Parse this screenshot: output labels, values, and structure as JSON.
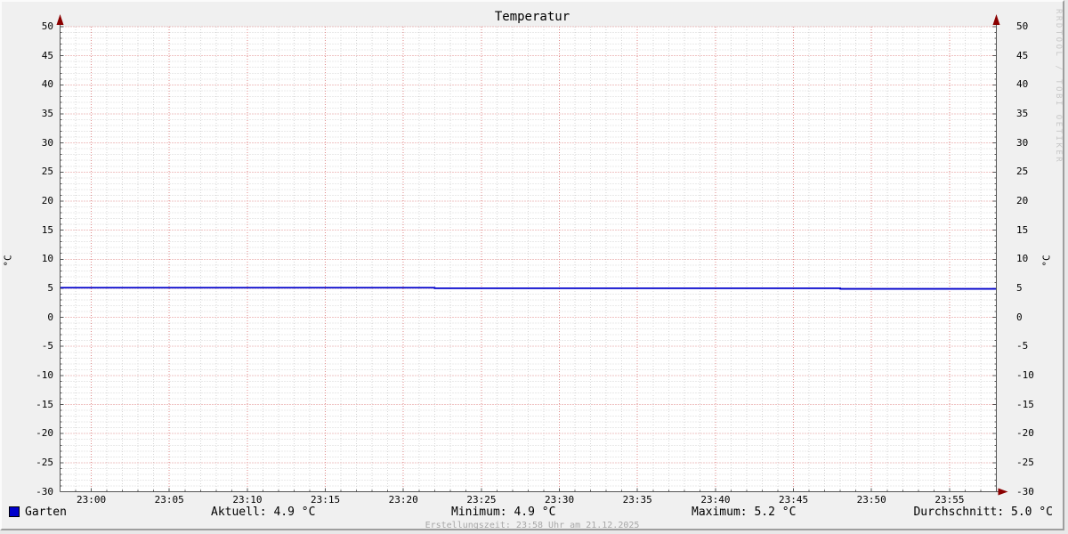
{
  "chart_data": {
    "type": "line",
    "title": "Temperatur",
    "ylabel": "°C",
    "ylabel_right": "°C",
    "ylim": [
      -30,
      50
    ],
    "y_tick_step": 5,
    "y_tick_labels": [
      "50",
      "45",
      "40",
      "35",
      "30",
      "25",
      "20",
      "15",
      "10",
      "5",
      "0",
      "-5",
      "-10",
      "-15",
      "-20",
      "-25",
      "-30"
    ],
    "x_start": "22:58",
    "x_end": "23:58",
    "x_major_step_minutes": 5,
    "x_minor_step_minutes": 1,
    "x_tick_labels": [
      "23:00",
      "23:05",
      "23:10",
      "23:15",
      "23:20",
      "23:25",
      "23:30",
      "23:35",
      "23:40",
      "23:45",
      "23:50",
      "23:55"
    ],
    "grid": "major red dotted every 5 °C / 5 min, minor gray dotted every 1 °C / 1 min",
    "series": [
      {
        "name": "Garten",
        "color": "#0000cc",
        "points": [
          {
            "t_min": 0,
            "v": 5.1
          },
          {
            "t_min": 24,
            "v": 5.1
          },
          {
            "t_min": 24,
            "v": 5.0
          },
          {
            "t_min": 50,
            "v": 5.0
          },
          {
            "t_min": 50,
            "v": 4.9
          },
          {
            "t_min": 60,
            "v": 4.9
          }
        ]
      }
    ],
    "stats": {
      "aktuell": 4.9,
      "minimum": 4.9,
      "maximum": 5.2,
      "durchschnitt": 5.0,
      "unit": "°C"
    }
  },
  "legend": {
    "series_label": "Garten",
    "series_color": "#0000cc",
    "aktuell": "Aktuell: 4.9 °C",
    "minimum": "Minimum: 4.9 °C",
    "maximum": "Maximum: 5.2 °C",
    "durchschnitt": "Durchschnitt: 5.0 °C"
  },
  "footer": {
    "text": "Erstellungszeit: 23:58 Uhr am 21.12.2025"
  },
  "branding": {
    "watermark": "RRDTOOL / TOBI OETIKER"
  },
  "colors": {
    "background": "#f0f0f0",
    "canvas": "#ffffff",
    "grid_major": "#e08989",
    "grid_minor": "#d6d6d6",
    "axis": "#555555",
    "arrow": "#8b0000",
    "series": "#0000cc",
    "watermark": "#c8c8c8",
    "footer_text": "#a8a8a8"
  }
}
